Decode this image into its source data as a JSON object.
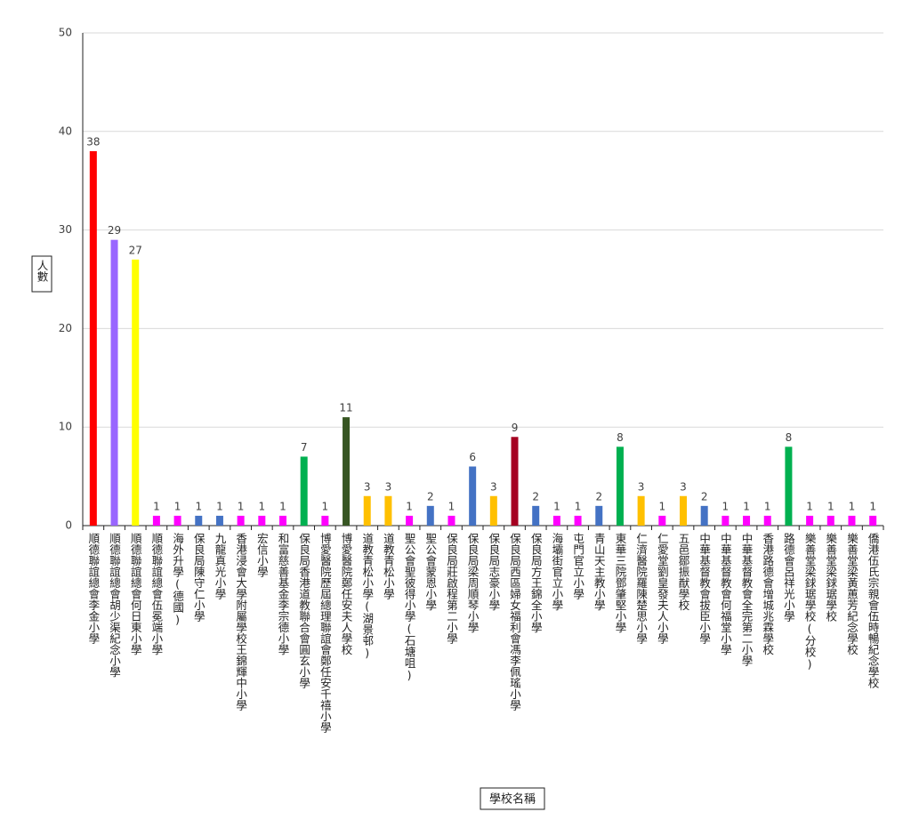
{
  "chart_data": {
    "type": "bar",
    "x_label": "學校名稱",
    "y_label": "人數",
    "categories": [
      "順德聯誼總會李金小學",
      "順德聯誼總會胡少渠紀念小學",
      "順德聯誼總會何日東小學",
      "順德聯誼總會伍冕端小學",
      "海外升學(德國)",
      "保良局陳守仁小學",
      "九龍真光小學",
      "香港浸會大學附屬學校王錦輝中小學",
      "宏信小學",
      "和富慈善基金李宗德小學",
      "保良局香港道教聯合會圓玄小學",
      "博愛醫院歷屆總理聯誼會鄭任安千禧小學",
      "博愛醫院鄭任安夫人學校",
      "道教青松小學(湖景邨)",
      "道教青松小學",
      "聖公會聖彼得小學(石塘咀)",
      "聖公會蒙恩小學",
      "保良局莊啟程第二小學",
      "保良局梁周順琴小學",
      "保良局志豪小學",
      "保良局西區婦女福利會馮李佩瑤小學",
      "保良局方王錦全小學",
      "海壩街官立小學",
      "屯門官立小學",
      "青山天主教小學",
      "東華三院鄧肇堅小學",
      "仁濟醫院羅陳楚思小學",
      "仁愛堂劉皇發夫人小學",
      "五邑鄒振猷學校",
      "中華基督教會拔臣小學",
      "中華基督教會何福堂小學",
      "中華基督教會全完第二小學",
      "香港路德會增城兆霖學校",
      "路德會呂祥光小學",
      "樂善堂梁銶琚學校(分校)",
      "樂善堂梁銶琚學校",
      "樂善堂梁黃蕙芳紀念學校",
      "僑港伍氏宗親會伍時暢紀念學校"
    ],
    "values": [
      38,
      29,
      27,
      1,
      1,
      1,
      1,
      1,
      1,
      1,
      7,
      1,
      11,
      3,
      3,
      1,
      2,
      1,
      6,
      3,
      9,
      2,
      1,
      1,
      2,
      8,
      3,
      1,
      3,
      2,
      1,
      1,
      1,
      8,
      1,
      1,
      1,
      1
    ],
    "colors": [
      "#ff0000",
      "#9966ff",
      "#ffff00",
      "#ff00ff",
      "#ff00ff",
      "#4472c4",
      "#4472c4",
      "#ff00ff",
      "#ff00ff",
      "#ff00ff",
      "#00b050",
      "#ff00ff",
      "#375623",
      "#ffc000",
      "#ffc000",
      "#ff00ff",
      "#4472c4",
      "#ff00ff",
      "#4472c4",
      "#ffc000",
      "#a50021",
      "#4472c4",
      "#ff00ff",
      "#ff00ff",
      "#4472c4",
      "#00b050",
      "#ffc000",
      "#ff00ff",
      "#ffc000",
      "#4472c4",
      "#ff00ff",
      "#ff00ff",
      "#ff00ff",
      "#00b050",
      "#ff00ff",
      "#ff00ff",
      "#ff00ff",
      "#ff00ff"
    ],
    "ylim": [
      0,
      50
    ],
    "yticks": [
      0,
      10,
      20,
      30,
      40,
      50
    ],
    "grid": true
  }
}
